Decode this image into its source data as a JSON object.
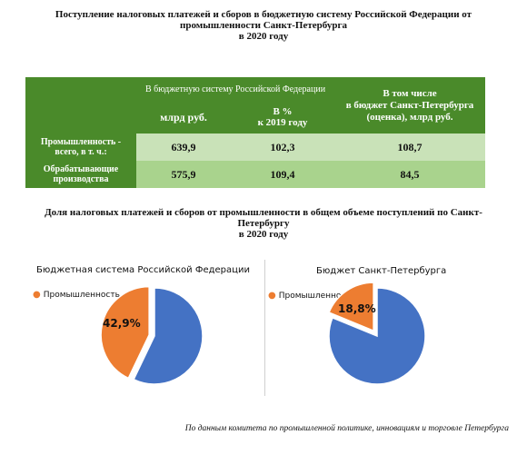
{
  "title_top": [
    "Поступление налоговых платежей и сборов в бюджетную систему Российской Федерации от",
    "промышленности Санкт-Петербурга",
    "в 2020 году"
  ],
  "table": {
    "header_group": "В бюджетную систему Российской Федерации",
    "col_bn": "млрд руб.",
    "col_pct": "В %\nк 2019 году",
    "col_spb": "В том числе\nв бюджет Санкт-Петербурга\n(оценка), млрд руб.",
    "rows": [
      {
        "label": "Промышленность -\nвсего, в т. ч.:",
        "bn": "639,9",
        "pct": "102,3",
        "spb": "108,7"
      },
      {
        "label": "Обрабатывающие\nпроизводства",
        "bn": "575,9",
        "pct": "109,4",
        "spb": "84,5"
      }
    ]
  },
  "title_bottom": [
    "Доля налоговых платежей и сборов от промышленности в общем объеме поступлений по Санкт-",
    "Петербургу",
    "в 2020 году"
  ],
  "chart_data": [
    {
      "type": "pie",
      "title": "Бюджетная система Российской Федерации",
      "legend": "Промышленность",
      "slices": [
        {
          "name": "Промышленность",
          "value": 42.9,
          "label": "42,9%"
        },
        {
          "name": "",
          "value": 57.1
        }
      ],
      "colors": [
        "#ed7d31",
        "#4472c4"
      ]
    },
    {
      "type": "pie",
      "title": "Бюджет Санкт-Петербурга",
      "legend": "Промышленность",
      "slices": [
        {
          "name": "Промышленность",
          "value": 18.8,
          "label": "18,8%"
        },
        {
          "name": "",
          "value": 81.2
        }
      ],
      "colors": [
        "#ed7d31",
        "#4472c4"
      ]
    }
  ],
  "footnote": "По данным комитета по промышленной политике, инновациям и торговле Петербурга"
}
